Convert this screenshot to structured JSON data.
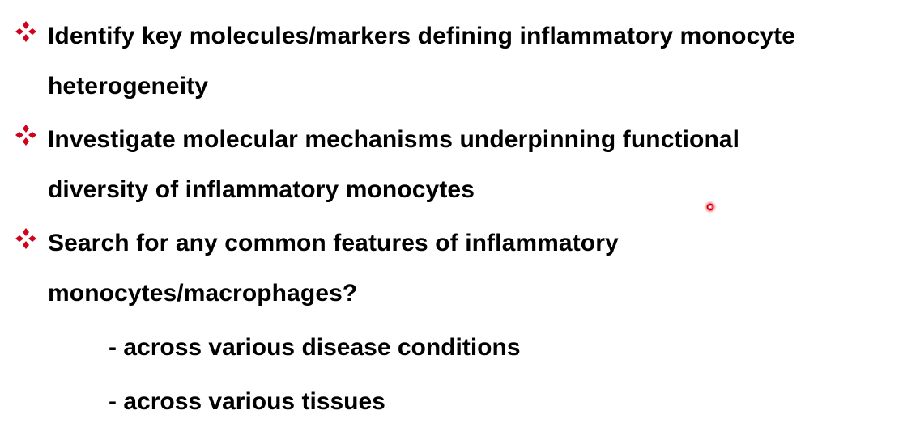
{
  "bullets": [
    {
      "lines": [
        "Identify key molecules/markers defining inflammatory monocyte",
        "heterogeneity"
      ]
    },
    {
      "lines": [
        "Investigate molecular mechanisms underpinning functional",
        "diversity of inflammatory monocytes"
      ]
    },
    {
      "lines": [
        "Search for any common features of inflammatory",
        "monocytes/macrophages?"
      ]
    }
  ],
  "sub_items": [
    "- across various disease conditions",
    "- across various tissues"
  ],
  "colors": {
    "bullet": "#d0021b",
    "text": "#000000",
    "pointer": "#e01020"
  },
  "icons": {
    "bullet": "diamond-bullet-icon",
    "pointer": "laser-pointer-icon"
  }
}
